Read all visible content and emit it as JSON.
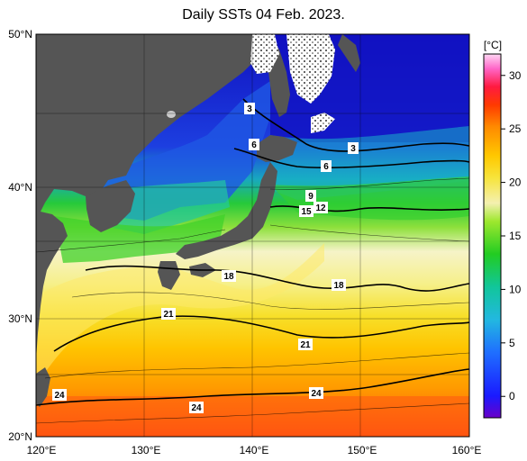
{
  "title": "Daily SSTs 04 Feb. 2023.",
  "unit_label": "[°C]",
  "map": {
    "lon_range": [
      120,
      160
    ],
    "lat_range": [
      20,
      50
    ],
    "lon_ticks": [
      "120°E",
      "130°E",
      "140°E",
      "150°E",
      "160°E"
    ],
    "lat_ticks": [
      "50°N",
      "40°N",
      "30°N",
      "20°N"
    ],
    "land_color": "#555555",
    "ice_color": "#ffffff"
  },
  "colorbar": {
    "tick_labels": [
      "30",
      "25",
      "20",
      "15",
      "10",
      "5",
      "0"
    ],
    "range": [
      -2,
      32
    ]
  },
  "contour_labels": [
    "3",
    "6",
    "3",
    "6",
    "9",
    "12",
    "15",
    "18",
    "18",
    "21",
    "21",
    "24",
    "24",
    "24"
  ]
}
